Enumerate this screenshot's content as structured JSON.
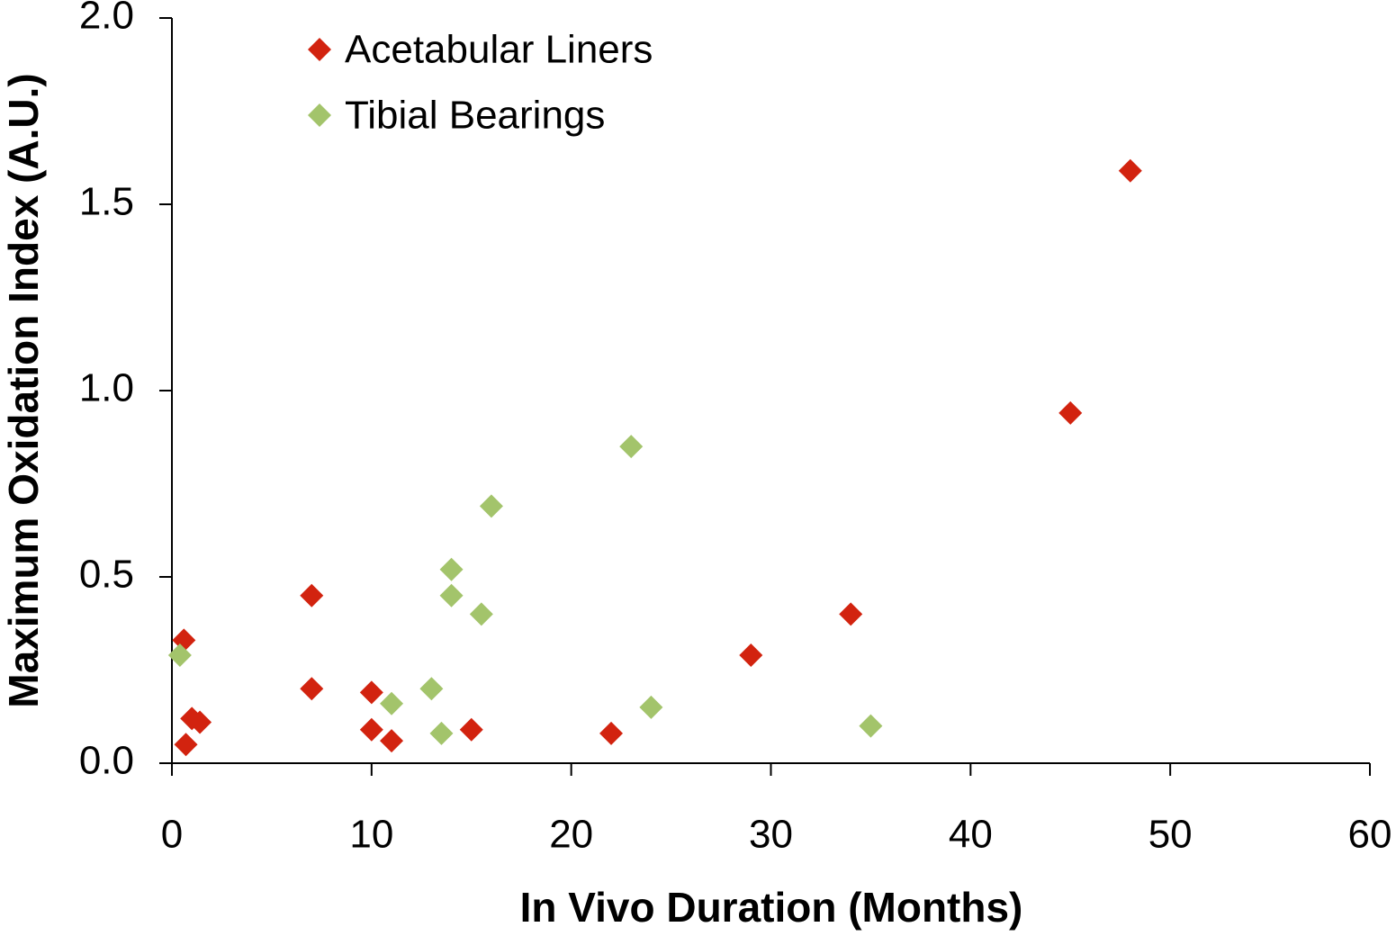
{
  "chart_data": {
    "type": "scatter",
    "xlabel": "In Vivo Duration (Months)",
    "ylabel": "Maximum Oxidation Index (A.U.)",
    "xlim": [
      0,
      60
    ],
    "xticks": [
      0,
      10,
      20,
      30,
      40,
      50,
      60
    ],
    "ylim": [
      0,
      2
    ],
    "yticks": [
      {
        "value": 0,
        "label": "0.0"
      },
      {
        "value": 0.5,
        "label": "0.5"
      },
      {
        "value": 1,
        "label": "1.0"
      },
      {
        "value": 1.5,
        "label": "1.5"
      },
      {
        "value": 2,
        "label": "2.0"
      }
    ],
    "grid": false,
    "legend": "upper left",
    "series": [
      {
        "name": "Acetabular Liners",
        "color": "#d2230f",
        "x": [
          0.6,
          0.7,
          1.0,
          1.4,
          7,
          7,
          10,
          10,
          11,
          15,
          22,
          29,
          34,
          45,
          48
        ],
        "y": [
          0.33,
          0.05,
          0.12,
          0.11,
          0.45,
          0.2,
          0.19,
          0.09,
          0.06,
          0.09,
          0.08,
          0.29,
          0.4,
          0.94,
          1.59
        ]
      },
      {
        "name": "Tibial Bearings",
        "color": "#a3c46b",
        "x": [
          0.4,
          11,
          13,
          13.5,
          14,
          14,
          15.5,
          16,
          23,
          24,
          35
        ],
        "y": [
          0.29,
          0.16,
          0.2,
          0.08,
          0.52,
          0.45,
          0.4,
          0.69,
          0.85,
          0.15,
          0.1
        ]
      }
    ]
  }
}
